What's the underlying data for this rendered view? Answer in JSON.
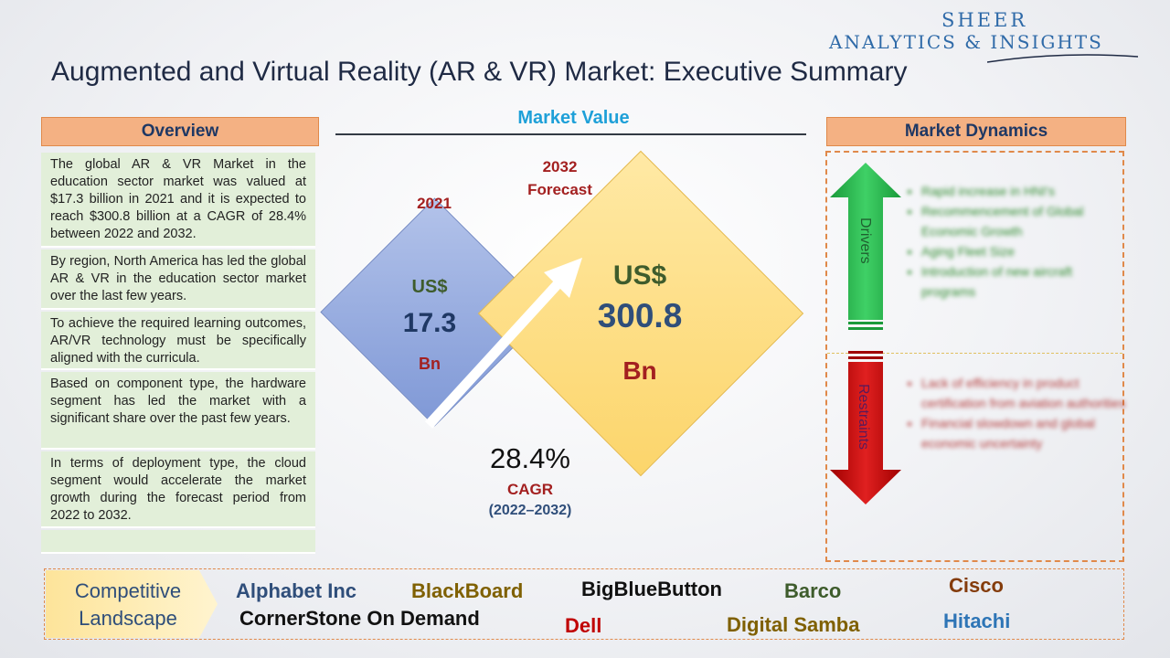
{
  "logo": {
    "line1": "SHEER",
    "line2": "ANALYTICS & INSIGHTS"
  },
  "title": "Augmented and Virtual Reality (AR & VR) Market: Executive Summary",
  "overview": {
    "header": "Overview",
    "paragraphs": [
      "The global AR & VR Market in the education sector market was valued at $17.3 billion in 2021 and it is expected to reach $300.8 billion at a CAGR of 28.4% between 2022 and 2032.",
      "By region, North America has led the global AR & VR in the education sector market over the last few years.",
      "To achieve the required learning outcomes, AR/VR technology must be specifically aligned with the curricula.",
      "Based on component type, the hardware segment has led the market with a significant share over the past few years.",
      "In terms of deployment type, the cloud segment would accelerate the market growth during the forecast period from 2022 to 2032."
    ]
  },
  "market_value": {
    "header": "Market Value",
    "y2021": {
      "year": "2021",
      "currency": "US$",
      "value": "17.3",
      "unit": "Bn"
    },
    "y2032": {
      "year": "2032",
      "label": "Forecast",
      "currency": "US$",
      "value": "300.8",
      "unit": "Bn"
    },
    "cagr": {
      "value": "28.4%",
      "label": "CAGR",
      "period": "(2022–2032)"
    }
  },
  "dynamics": {
    "header": "Market Dynamics",
    "drivers_label": "Drivers",
    "restraints_label": "Restraints",
    "drivers": [
      "Rapid increase in HNI's",
      "Recommencement of Global Economic Growth",
      "Aging Fleet Size",
      "Introduction of new aircraft programs"
    ],
    "restraints": [
      "Lack of efficiency in product certification from aviation authorities",
      "Financial slowdown and global economic uncertainty"
    ]
  },
  "competitive": {
    "label_line1": "Competitive",
    "label_line2": "Landscape",
    "companies": [
      {
        "name": "Alphabet Inc",
        "color": "#2f4e7a"
      },
      {
        "name": "BlackBoard",
        "color": "#7f6000"
      },
      {
        "name": "BigBlueButton",
        "color": "#111111"
      },
      {
        "name": "Barco",
        "color": "#3e5c2c"
      },
      {
        "name": "Cisco",
        "color": "#843c0c"
      },
      {
        "name": "CornerStone On Demand",
        "color": "#111111"
      },
      {
        "name": "Dell",
        "color": "#c00000"
      },
      {
        "name": "Digital Samba",
        "color": "#7f6000"
      },
      {
        "name": "Hitachi",
        "color": "#2e75b6"
      }
    ]
  }
}
